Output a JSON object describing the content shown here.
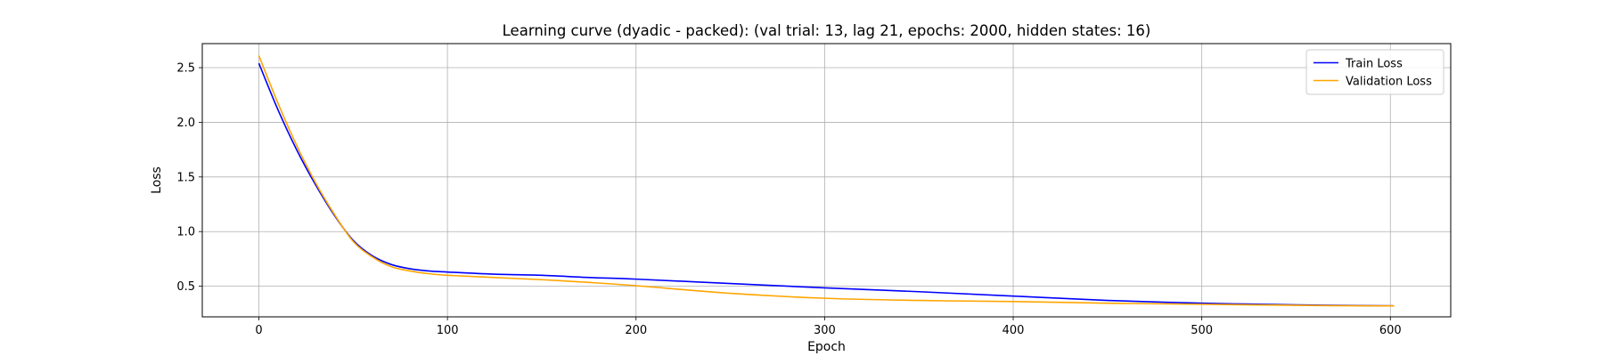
{
  "chart_data": {
    "type": "line",
    "title": "Learning curve (dyadic - packed): (val trial: 13, lag 21, epochs: 2000, hidden states: 16)",
    "xlabel": "Epoch",
    "ylabel": "Loss",
    "xlim": [
      -30,
      632
    ],
    "ylim": [
      0.22,
      2.72
    ],
    "xticks": [
      0,
      100,
      200,
      300,
      400,
      500,
      600
    ],
    "yticks": [
      0.5,
      1.0,
      1.5,
      2.0,
      2.5
    ],
    "xtick_labels": [
      "0",
      "100",
      "200",
      "300",
      "400",
      "500",
      "600"
    ],
    "ytick_labels": [
      "0.5",
      "1.0",
      "1.5",
      "2.0",
      "2.5"
    ],
    "grid": true,
    "legend_position": "top-right",
    "series": [
      {
        "name": "Train Loss",
        "color": "#0000ff",
        "x": [
          0,
          10,
          20,
          30,
          40,
          50,
          60,
          70,
          80,
          90,
          100,
          125,
          150,
          175,
          200,
          250,
          300,
          350,
          400,
          450,
          500,
          550,
          602
        ],
        "y": [
          2.54,
          2.12,
          1.75,
          1.43,
          1.15,
          0.92,
          0.78,
          0.7,
          0.66,
          0.64,
          0.63,
          0.61,
          0.6,
          0.58,
          0.565,
          0.525,
          0.485,
          0.45,
          0.41,
          0.37,
          0.345,
          0.33,
          0.32
        ]
      },
      {
        "name": "Validation Loss",
        "color": "#ffa500",
        "x": [
          0,
          10,
          20,
          30,
          40,
          50,
          60,
          70,
          80,
          90,
          100,
          125,
          150,
          175,
          200,
          250,
          300,
          350,
          400,
          450,
          500,
          550,
          602
        ],
        "y": [
          2.61,
          2.18,
          1.79,
          1.45,
          1.16,
          0.91,
          0.77,
          0.68,
          0.64,
          0.615,
          0.6,
          0.58,
          0.56,
          0.535,
          0.505,
          0.435,
          0.39,
          0.37,
          0.36,
          0.345,
          0.335,
          0.325,
          0.32
        ]
      }
    ]
  }
}
